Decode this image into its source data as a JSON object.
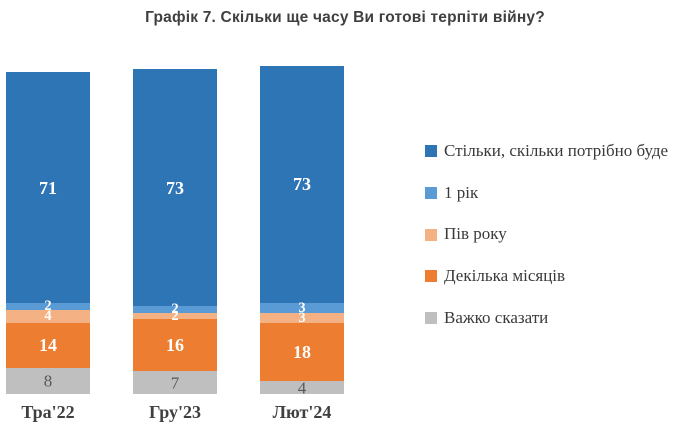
{
  "title": "Графік 7. Скільки ще часу Ви готові терпіти війну?",
  "chart_data": {
    "type": "bar",
    "stacked": true,
    "orientation": "vertical",
    "title": "Графік 7. Скільки ще часу Ви готові терпіти війну?",
    "categories": [
      "Тра'22",
      "Гру'23",
      "Лют'24"
    ],
    "series": [
      {
        "name": "Стільки, скільки потрібно буде",
        "color": "#2E75B6",
        "values": [
          71,
          73,
          73
        ],
        "label_color": "#FFFFFF"
      },
      {
        "name": "1 рік",
        "color": "#5B9BD5",
        "values": [
          2,
          2,
          3
        ],
        "label_color": "#FFFFFF"
      },
      {
        "name": "Пів року",
        "color": "#F4B183",
        "values": [
          4,
          2,
          3
        ],
        "label_color": "#FFFFFF"
      },
      {
        "name": "Декілька місяців",
        "color": "#ED7D31",
        "values": [
          14,
          16,
          18
        ],
        "label_color": "#FFFFFF"
      },
      {
        "name": "Важко сказати",
        "color": "#BFBFBF",
        "values": [
          8,
          7,
          4
        ],
        "label_color": "#595959"
      }
    ],
    "legend_position": "right",
    "grid": false,
    "axes_visible": false,
    "value_labels": "inside"
  }
}
